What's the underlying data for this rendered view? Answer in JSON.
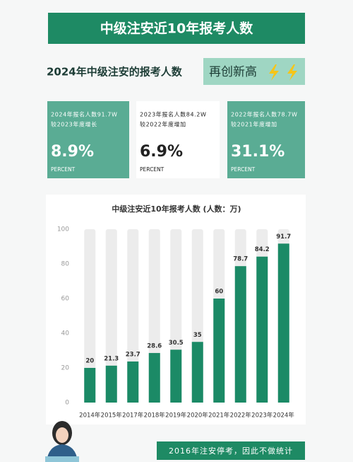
{
  "header": {
    "title": "中级注安近10年报考人数"
  },
  "subheader": {
    "title": "2024年中级注安的报考人数",
    "badge": "再创新高"
  },
  "cards": [
    {
      "line1": "2024年报名人数91.7W",
      "line2": "较2023年度增长",
      "value": "8.9%",
      "unit": "PERCENT"
    },
    {
      "line1": "2023年报名人数84.2W",
      "line2": "较2022年度增加",
      "value": "6.9%",
      "unit": "PERCENT"
    },
    {
      "line1": "2022年报名人数78.7W",
      "line2": "较2021年度增加",
      "value": "31.1%",
      "unit": "PERCENT"
    }
  ],
  "chart_data": {
    "type": "bar",
    "title": "中级注安近10年报考人数 (人数：万)",
    "categories": [
      "2014年",
      "2015年",
      "2017年",
      "2018年",
      "2019年",
      "2020年",
      "2021年",
      "2022年",
      "2023年",
      "2024年"
    ],
    "values": [
      20,
      21.3,
      23.7,
      28.6,
      30.5,
      35,
      60,
      78.7,
      84.2,
      91.7
    ],
    "color": "#1b8a66",
    "track_color": "#ececec",
    "ylim": [
      0,
      100
    ],
    "yticks": [
      0,
      20,
      40,
      60,
      80,
      100
    ],
    "grid": false
  },
  "footer": {
    "note": "2016年注安停考，因此不做统计"
  }
}
